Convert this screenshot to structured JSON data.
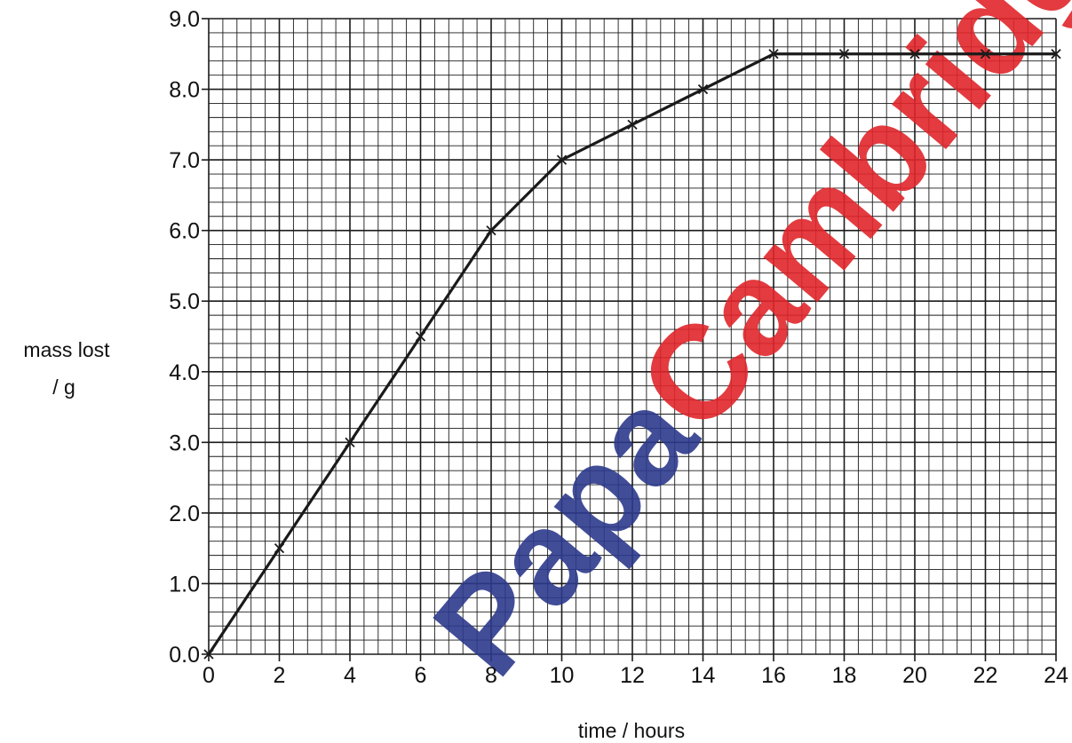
{
  "chart_data": {
    "type": "line",
    "xlabel": "time / hours",
    "ylabel_line1": "mass lost",
    "ylabel_line2": "/ g",
    "xlim": [
      0,
      24
    ],
    "ylim": [
      0,
      9
    ],
    "x_ticks": [
      0,
      2,
      4,
      6,
      8,
      10,
      12,
      14,
      16,
      18,
      20,
      22,
      24
    ],
    "y_ticks": [
      "0.0",
      "1.0",
      "2.0",
      "3.0",
      "4.0",
      "5.0",
      "6.0",
      "7.0",
      "8.0",
      "9.0"
    ],
    "grid": true,
    "marker": "x",
    "line_color": "#1a1a1a",
    "series": [
      {
        "x": [
          0,
          2,
          4,
          6,
          8,
          10,
          12,
          14,
          16,
          18,
          20,
          22,
          24
        ],
        "y": [
          0.0,
          1.5,
          3.0,
          4.5,
          6.0,
          7.0,
          7.5,
          8.0,
          8.5,
          8.5,
          8.5,
          8.5,
          8.5
        ]
      }
    ]
  },
  "watermark": {
    "part1": "Papa",
    "part2": "Cambridge",
    "color1": "#2d3a8c",
    "color2": "#e0262b"
  }
}
